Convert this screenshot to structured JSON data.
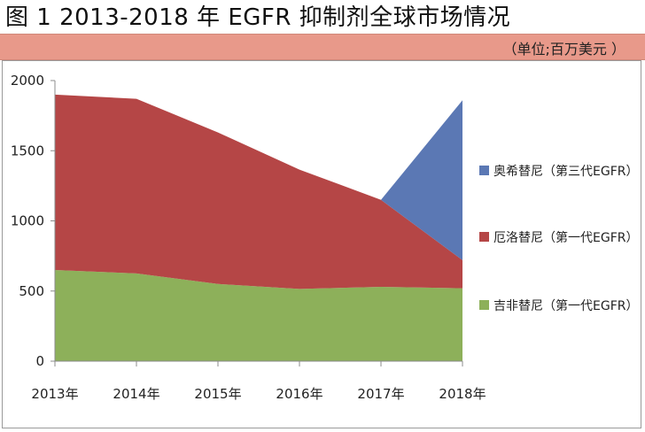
{
  "page": {
    "title": "图 1  2013-2018 年 EGFR 抑制剂全球市场情况",
    "unit": "（单位;百万美元  ）"
  },
  "chart_data": {
    "type": "area",
    "stacked": true,
    "categories": [
      "2013年",
      "2014年",
      "2015年",
      "2016年",
      "2017年",
      "2018年"
    ],
    "ylim": [
      0,
      2000
    ],
    "yticks": [
      0,
      500,
      1000,
      1500,
      2000
    ],
    "grid": false,
    "legend_position": "right",
    "series": [
      {
        "name": "吉非替尼（第一代EGFR）",
        "color": "#8db05a",
        "values": [
          650,
          625,
          550,
          515,
          530,
          520
        ]
      },
      {
        "name": "厄洛替尼（第一代EGFR）",
        "color": "#b54646",
        "values": [
          1250,
          1245,
          1080,
          850,
          620,
          200
        ]
      },
      {
        "name": "奥希替尼（第三代EGFR）",
        "color": "#5b78b4",
        "values": [
          0,
          0,
          0,
          0,
          0,
          1140
        ]
      }
    ]
  }
}
